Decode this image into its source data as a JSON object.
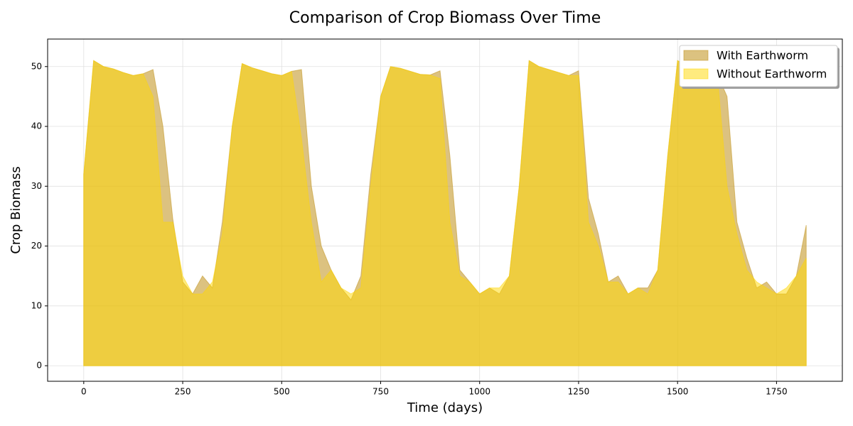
{
  "chart_data": {
    "type": "area",
    "title": "Comparison of Crop Biomass Over Time",
    "x_label": "Time (days)",
    "y_label": "Crop Biomass",
    "x": [
      0,
      25,
      50,
      75,
      100,
      125,
      150,
      175,
      200,
      225,
      250,
      275,
      300,
      325,
      350,
      375,
      400,
      425,
      450,
      475,
      500,
      525,
      550,
      575,
      600,
      625,
      650,
      675,
      700,
      725,
      750,
      775,
      800,
      825,
      850,
      875,
      900,
      925,
      950,
      975,
      1000,
      1025,
      1050,
      1075,
      1100,
      1125,
      1150,
      1175,
      1200,
      1225,
      1250,
      1275,
      1300,
      1325,
      1350,
      1375,
      1400,
      1425,
      1450,
      1475,
      1500,
      1525,
      1550,
      1575,
      1600,
      1625,
      1650,
      1675,
      1700,
      1725,
      1750,
      1775,
      1800,
      1825
    ],
    "series": [
      {
        "name": "With Earthworm",
        "color": "#c49a2c",
        "opacity": 0.6,
        "values": [
          32,
          51,
          50,
          49.6,
          49,
          48.5,
          48.8,
          49.5,
          40,
          24.5,
          14,
          12,
          15,
          13,
          24,
          40,
          50.5,
          49.8,
          49.3,
          48.8,
          48.5,
          49.2,
          49.5,
          30,
          20,
          16,
          13,
          11,
          15,
          32,
          45,
          50,
          49.7,
          49.2,
          48.7,
          48.6,
          49.3,
          35,
          16,
          14,
          12,
          13,
          12,
          15,
          30,
          51,
          50,
          49.5,
          49,
          48.5,
          49.3,
          28,
          22,
          14,
          15,
          12,
          13,
          13,
          16,
          35,
          51,
          50,
          49.8,
          49.3,
          48.8,
          45,
          24,
          18,
          13,
          14,
          12,
          12,
          15,
          23.5
        ]
      },
      {
        "name": "Without Earthworm",
        "color": "#ffd700",
        "opacity": 0.5,
        "values": [
          32,
          51,
          50,
          49.6,
          49,
          48.5,
          48.8,
          45,
          24,
          24,
          15,
          12,
          12,
          14,
          22,
          40,
          50.5,
          49.8,
          49.3,
          48.8,
          48.5,
          49.2,
          38,
          24,
          14,
          16,
          13,
          12,
          13,
          30,
          45,
          50,
          49.7,
          49.2,
          48.7,
          48.6,
          48,
          24,
          15,
          14,
          12,
          13,
          13,
          15,
          30,
          51,
          50,
          49.5,
          49,
          48.5,
          48.5,
          24,
          20,
          14,
          14,
          12,
          13,
          12,
          16,
          35,
          51,
          50,
          49.8,
          49.3,
          48.8,
          30,
          22,
          16,
          14,
          13,
          12,
          13,
          15,
          18
        ]
      }
    ],
    "xlim": [
      -91.25,
      1916.25
    ],
    "ylim": [
      -2.6,
      54.6
    ],
    "xticks": [
      0,
      250,
      500,
      750,
      1000,
      1250,
      1500,
      1750
    ],
    "yticks": [
      0,
      10,
      20,
      30,
      40,
      50
    ],
    "grid": true,
    "legend": "upper right"
  }
}
